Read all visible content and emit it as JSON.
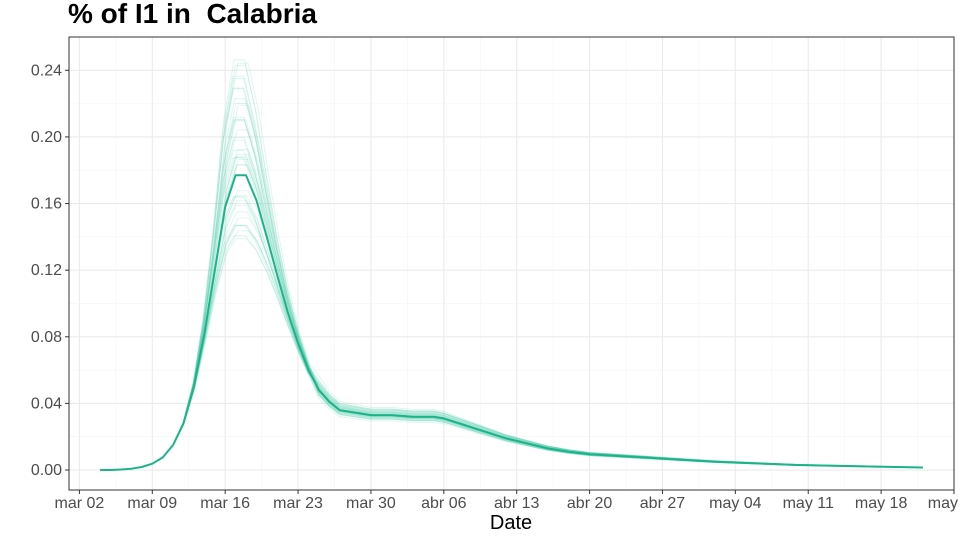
{
  "chart_data": {
    "type": "line",
    "title": "% of I1 in  Calabria",
    "xlabel": "Date",
    "ylabel": "",
    "ylim": [
      -0.012,
      0.26
    ],
    "xlim": [
      "2020-03-01",
      "2020-05-25"
    ],
    "x_ticks": [
      "mar 02",
      "mar 09",
      "mar 16",
      "mar 23",
      "mar 30",
      "abr 06",
      "abr 13",
      "abr 20",
      "abr 27",
      "may 04",
      "may 11",
      "may 18",
      "may 25"
    ],
    "y_ticks": [
      "0.00",
      "0.04",
      "0.08",
      "0.12",
      "0.16",
      "0.20",
      "0.24"
    ],
    "y_tick_values": [
      0,
      0.04,
      0.08,
      0.12,
      0.16,
      0.2,
      0.24
    ],
    "grid": true,
    "legend": "none",
    "colors": {
      "main": "#1db38a",
      "ensemble": "#3cc7a0"
    },
    "ensemble_count": 40,
    "series": [
      {
        "x": [
          "2020-03-04",
          "2020-03-05",
          "2020-03-06",
          "2020-03-07",
          "2020-03-08",
          "2020-03-09",
          "2020-03-10",
          "2020-03-11",
          "2020-03-12",
          "2020-03-13",
          "2020-03-14",
          "2020-03-15",
          "2020-03-16",
          "2020-03-17",
          "2020-03-18",
          "2020-03-19",
          "2020-03-20",
          "2020-03-21",
          "2020-03-22",
          "2020-03-23",
          "2020-03-24",
          "2020-03-25",
          "2020-03-26",
          "2020-03-27",
          "2020-03-28",
          "2020-03-29",
          "2020-03-30",
          "2020-03-31",
          "2020-04-01",
          "2020-04-02",
          "2020-04-03",
          "2020-04-04",
          "2020-04-05",
          "2020-04-06",
          "2020-04-07",
          "2020-04-08",
          "2020-04-09",
          "2020-04-10",
          "2020-04-12",
          "2020-04-14",
          "2020-04-16",
          "2020-04-18",
          "2020-04-20",
          "2020-04-24",
          "2020-04-28",
          "2020-05-02",
          "2020-05-06",
          "2020-05-10",
          "2020-05-14",
          "2020-05-18",
          "2020-05-22"
        ],
        "values": [
          0.0,
          0.0,
          0.0003,
          0.0008,
          0.0018,
          0.0038,
          0.0075,
          0.015,
          0.028,
          0.05,
          0.082,
          0.12,
          0.158,
          0.177,
          0.177,
          0.162,
          0.14,
          0.117,
          0.095,
          0.076,
          0.06,
          0.048,
          0.041,
          0.036,
          0.035,
          0.034,
          0.033,
          0.033,
          0.033,
          0.0325,
          0.032,
          0.032,
          0.032,
          0.031,
          0.029,
          0.027,
          0.025,
          0.023,
          0.019,
          0.016,
          0.013,
          0.011,
          0.0095,
          0.008,
          0.0065,
          0.005,
          0.004,
          0.003,
          0.0025,
          0.002,
          0.0015
        ]
      }
    ]
  }
}
